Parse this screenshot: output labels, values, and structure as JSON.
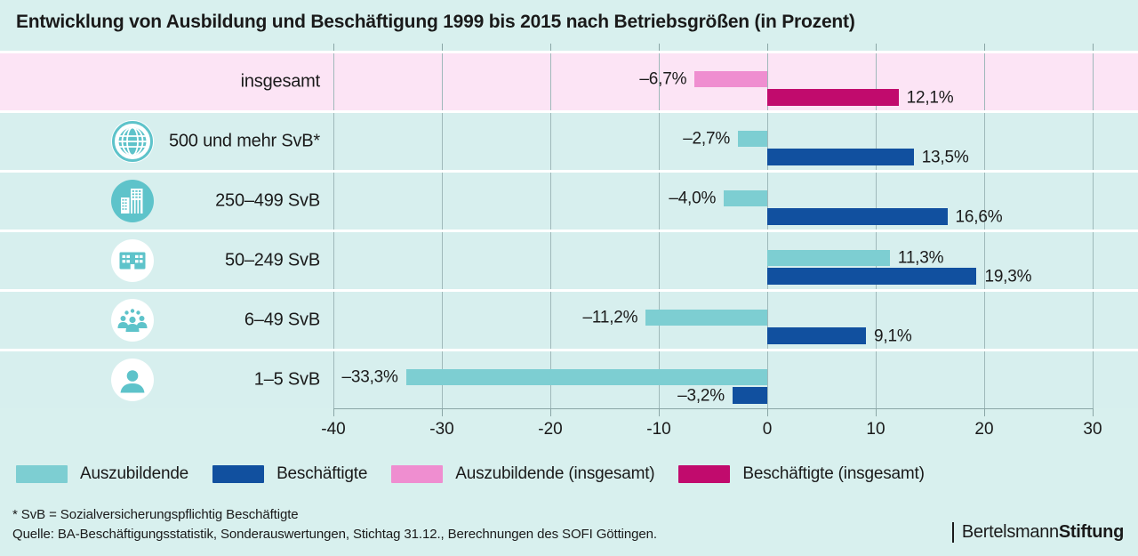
{
  "title": "Entwicklung von Ausbildung und Beschäftigung 1999 bis 2015 nach Betriebsgrößen (in Prozent)",
  "colors": {
    "background": "#d8f0ee",
    "row_bg": "#d7efee",
    "row_highlight_bg": "#fce4f5",
    "teal": "#7dced2",
    "blue": "#11509f",
    "pink": "#ef8ed0",
    "magenta": "#c10b6d",
    "grid": "#9fb9ba",
    "axis": "#8aa6a6",
    "icon_teal": "#5ec3ca",
    "text": "#1a1a1a"
  },
  "chart_data": {
    "type": "bar",
    "orientation": "horizontal",
    "title": "Entwicklung von Ausbildung und Beschäftigung 1999 bis 2015 nach Betriebsgrößen (in Prozent)",
    "xlim": [
      -40,
      30
    ],
    "ticks": [
      -40,
      -30,
      -20,
      -10,
      0,
      10,
      20,
      30
    ],
    "tick_labels": [
      "-40",
      "-30",
      "-20",
      "-10",
      "0",
      "10",
      "20",
      "30"
    ],
    "grid": true,
    "unit": "Prozent",
    "categories": [
      "insgesamt",
      "500 und mehr SvB*",
      "250–499 SvB",
      "50–249 SvB",
      "6–49 SvB",
      "1–5 SvB"
    ],
    "series": [
      {
        "name": "Auszubildende",
        "values": [
          -6.7,
          -2.7,
          -4.0,
          11.3,
          -11.2,
          -33.3
        ]
      },
      {
        "name": "Beschäftigte",
        "values": [
          12.1,
          13.5,
          16.6,
          19.3,
          9.1,
          -3.2
        ]
      }
    ],
    "rows": [
      {
        "label": "insgesamt",
        "icon": null,
        "highlight": true,
        "bars": [
          {
            "key": "auszubildende-insgesamt",
            "value": -6.7,
            "display": "–6,7%",
            "color": "pink"
          },
          {
            "key": "beschaeftigte-insgesamt",
            "value": 12.1,
            "display": "12,1%",
            "color": "magenta"
          }
        ]
      },
      {
        "label": "500 und mehr SvB*",
        "icon": "globe-icon",
        "highlight": false,
        "bars": [
          {
            "key": "auszubildende",
            "value": -2.7,
            "display": "–2,7%",
            "color": "teal"
          },
          {
            "key": "beschaeftigte",
            "value": 13.5,
            "display": "13,5%",
            "color": "blue"
          }
        ]
      },
      {
        "label": "250–499 SvB",
        "icon": "city-buildings-icon",
        "highlight": false,
        "bars": [
          {
            "key": "auszubildende",
            "value": -4.0,
            "display": "–4,0%",
            "color": "teal"
          },
          {
            "key": "beschaeftigte",
            "value": 16.6,
            "display": "16,6%",
            "color": "blue"
          }
        ]
      },
      {
        "label": "50–249 SvB",
        "icon": "office-building-icon",
        "highlight": false,
        "bars": [
          {
            "key": "auszubildende",
            "value": 11.3,
            "display": "11,3%",
            "color": "teal"
          },
          {
            "key": "beschaeftigte",
            "value": 19.3,
            "display": "19,3%",
            "color": "blue"
          }
        ]
      },
      {
        "label": "6–49 SvB",
        "icon": "people-group-icon",
        "highlight": false,
        "bars": [
          {
            "key": "auszubildende",
            "value": -11.2,
            "display": "–11,2%",
            "color": "teal"
          },
          {
            "key": "beschaeftigte",
            "value": 9.1,
            "display": "9,1%",
            "color": "blue"
          }
        ]
      },
      {
        "label": "1–5 SvB",
        "icon": "person-icon",
        "highlight": false,
        "bars": [
          {
            "key": "auszubildende",
            "value": -33.3,
            "display": "–33,3%",
            "color": "teal"
          },
          {
            "key": "beschaeftigte",
            "value": -3.2,
            "display": "–3,2%",
            "color": "blue"
          }
        ]
      }
    ]
  },
  "legend": {
    "items": [
      {
        "label": "Auszubildende",
        "color": "teal"
      },
      {
        "label": "Beschäftigte",
        "color": "blue"
      },
      {
        "label": "Auszubildende (insgesamt)",
        "color": "pink"
      },
      {
        "label": "Beschäftigte (insgesamt)",
        "color": "magenta"
      }
    ]
  },
  "footnotes": {
    "svb": "* SvB = Sozialversicherungspflichtig Beschäftigte",
    "source": "Quelle: BA-Beschäftigungsstatistik, Sonderauswertungen, Stichtag 31.12., Berechnungen des SOFI Göttingen."
  },
  "logo": {
    "regular": "Bertelsmann",
    "bold": "Stiftung"
  }
}
